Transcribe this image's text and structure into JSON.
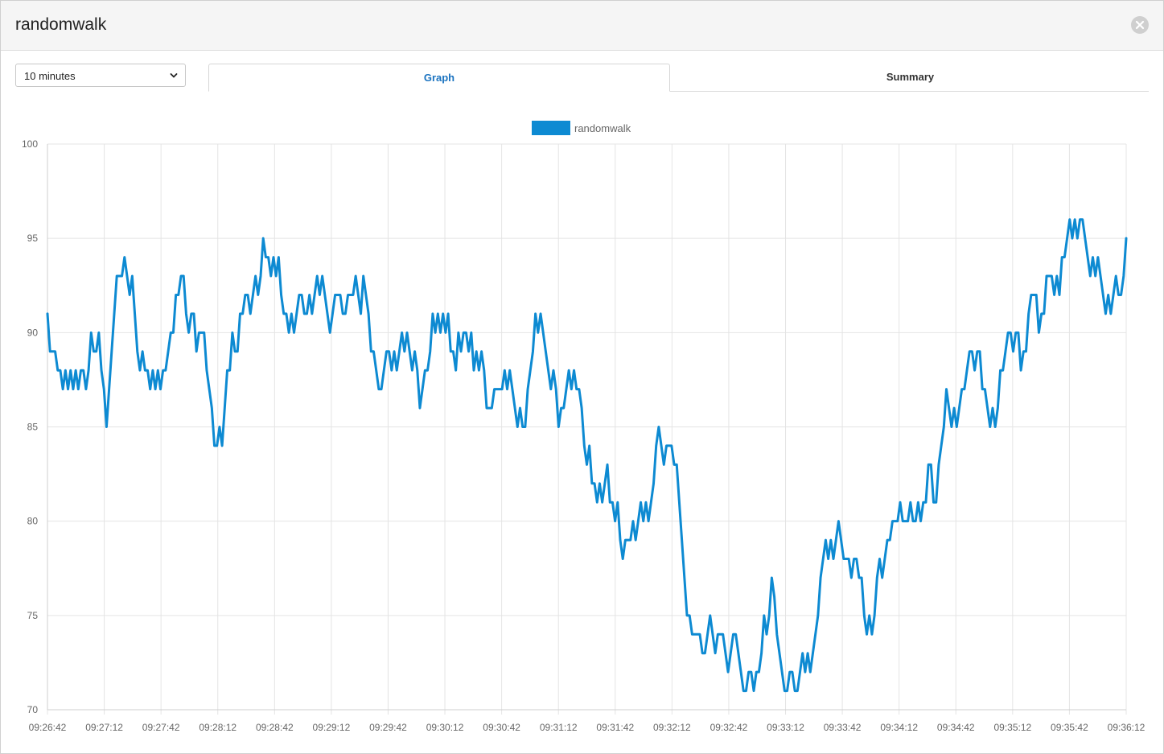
{
  "modal": {
    "title": "randomwalk"
  },
  "range_select": {
    "value": "10 minutes"
  },
  "tabs": [
    {
      "label": "Graph",
      "active": true
    },
    {
      "label": "Summary",
      "active": false
    }
  ],
  "icons": {
    "close": "close-icon",
    "dropdown": "chevron-down-icon"
  },
  "colors": {
    "series": "#0d8ad2",
    "active_tab": "#1a73c0"
  },
  "chart_data": {
    "type": "line",
    "title": "",
    "xlabel": "",
    "ylabel": "",
    "legend": "top-center",
    "grid": true,
    "ylim": [
      70,
      100
    ],
    "y_ticks": [
      "70",
      "75",
      "80",
      "85",
      "90",
      "95",
      "100"
    ],
    "x_ticks": [
      "09:26:42",
      "09:27:12",
      "09:27:42",
      "09:28:12",
      "09:28:42",
      "09:29:12",
      "09:29:42",
      "09:30:12",
      "09:30:42",
      "09:31:12",
      "09:31:42",
      "09:32:12",
      "09:32:42",
      "09:33:12",
      "09:33:42",
      "09:34:12",
      "09:34:42",
      "09:35:12",
      "09:35:42",
      "09:36:12"
    ],
    "series": [
      {
        "name": "randomwalk",
        "values": [
          91,
          89,
          89,
          89,
          88,
          88,
          87,
          88,
          87,
          88,
          87,
          88,
          87,
          88,
          88,
          87,
          88,
          90,
          89,
          89,
          90,
          88,
          87,
          85,
          87,
          89,
          91,
          93,
          93,
          93,
          94,
          93,
          92,
          93,
          91,
          89,
          88,
          89,
          88,
          88,
          87,
          88,
          87,
          88,
          87,
          88,
          88,
          89,
          90,
          90,
          92,
          92,
          93,
          93,
          91,
          90,
          91,
          91,
          89,
          90,
          90,
          90,
          88,
          87,
          86,
          84,
          84,
          85,
          84,
          86,
          88,
          88,
          90,
          89,
          89,
          91,
          91,
          92,
          92,
          91,
          92,
          93,
          92,
          93,
          95,
          94,
          94,
          93,
          94,
          93,
          94,
          92,
          91,
          91,
          90,
          91,
          90,
          91,
          92,
          92,
          91,
          91,
          92,
          91,
          92,
          93,
          92,
          93,
          92,
          91,
          90,
          91,
          92,
          92,
          92,
          91,
          91,
          92,
          92,
          92,
          93,
          92,
          91,
          93,
          92,
          91,
          89,
          89,
          88,
          87,
          87,
          88,
          89,
          89,
          88,
          89,
          88,
          89,
          90,
          89,
          90,
          89,
          88,
          89,
          88,
          86,
          87,
          88,
          88,
          89,
          91,
          90,
          91,
          90,
          91,
          90,
          91,
          89,
          89,
          88,
          90,
          89,
          90,
          90,
          89,
          90,
          88,
          89,
          88,
          89,
          88,
          86,
          86,
          86,
          87,
          87,
          87,
          87,
          88,
          87,
          88,
          87,
          86,
          85,
          86,
          85,
          85,
          87,
          88,
          89,
          91,
          90,
          91,
          90,
          89,
          88,
          87,
          88,
          87,
          85,
          86,
          86,
          87,
          88,
          87,
          88,
          87,
          87,
          86,
          84,
          83,
          84,
          82,
          82,
          81,
          82,
          81,
          82,
          83,
          81,
          81,
          80,
          81,
          79,
          78,
          79,
          79,
          79,
          80,
          79,
          80,
          81,
          80,
          81,
          80,
          81,
          82,
          84,
          85,
          84,
          83,
          84,
          84,
          84,
          83,
          83,
          81,
          79,
          77,
          75,
          75,
          74,
          74,
          74,
          74,
          73,
          73,
          74,
          75,
          74,
          73,
          74,
          74,
          74,
          73,
          72,
          73,
          74,
          74,
          73,
          72,
          71,
          71,
          72,
          72,
          71,
          72,
          72,
          73,
          75,
          74,
          75,
          77,
          76,
          74,
          73,
          72,
          71,
          71,
          72,
          72,
          71,
          71,
          72,
          73,
          72,
          73,
          72,
          73,
          74,
          75,
          77,
          78,
          79,
          78,
          79,
          78,
          79,
          80,
          79,
          78,
          78,
          78,
          77,
          78,
          78,
          77,
          77,
          75,
          74,
          75,
          74,
          75,
          77,
          78,
          77,
          78,
          79,
          79,
          80,
          80,
          80,
          81,
          80,
          80,
          80,
          81,
          80,
          80,
          81,
          80,
          81,
          81,
          83,
          83,
          81,
          81,
          83,
          84,
          85,
          87,
          86,
          85,
          86,
          85,
          86,
          87,
          87,
          88,
          89,
          89,
          88,
          89,
          89,
          87,
          87,
          86,
          85,
          86,
          85,
          86,
          88,
          88,
          89,
          90,
          90,
          89,
          90,
          90,
          88,
          89,
          89,
          91,
          92,
          92,
          92,
          90,
          91,
          91,
          93,
          93,
          93,
          92,
          93,
          92,
          94,
          94,
          95,
          96,
          95,
          96,
          95,
          96,
          96,
          95,
          94,
          93,
          94,
          93,
          94,
          93,
          92,
          91,
          92,
          91,
          92,
          93,
          92,
          92,
          93,
          95
        ]
      }
    ]
  }
}
